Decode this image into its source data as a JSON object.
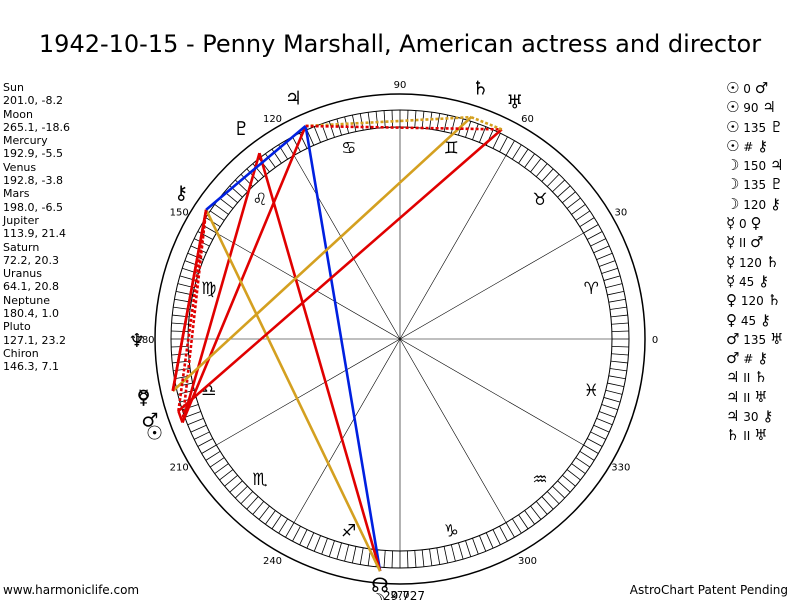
{
  "title": "1942-10-15 - Penny Marshall, American actress and director",
  "planets": [
    {
      "name": "Sun",
      "pos": "201.0, -8.2",
      "lon": 201.0,
      "glyph": "☉"
    },
    {
      "name": "Moon",
      "pos": "265.1, -18.6",
      "lon": 265.1,
      "glyph": "☽"
    },
    {
      "name": "Mercury",
      "pos": "192.9, -5.5",
      "lon": 192.9,
      "glyph": "☿"
    },
    {
      "name": "Venus",
      "pos": "192.8, -3.8",
      "lon": 192.8,
      "glyph": "♀"
    },
    {
      "name": "Mars",
      "pos": "198.0, -6.5",
      "lon": 198.0,
      "glyph": "♂"
    },
    {
      "name": "Jupiter",
      "pos": "113.9, 21.4",
      "lon": 113.9,
      "glyph": "♃"
    },
    {
      "name": "Saturn",
      "pos": "72.2, 20.3",
      "lon": 72.2,
      "glyph": "♄"
    },
    {
      "name": "Uranus",
      "pos": "64.1, 20.8",
      "lon": 64.1,
      "glyph": "♅"
    },
    {
      "name": "Neptune",
      "pos": "180.4, 1.0",
      "lon": 180.4,
      "glyph": "♆"
    },
    {
      "name": "Pluto",
      "pos": "127.1, 23.2",
      "lon": 127.1,
      "glyph": "♇"
    },
    {
      "name": "Chiron",
      "pos": "146.3, 7.1",
      "lon": 146.3,
      "glyph": "⚷"
    }
  ],
  "aspects": [
    {
      "p1": "☉",
      "val": "0",
      "p2": "♂"
    },
    {
      "p1": "☉",
      "val": "90",
      "p2": "♃"
    },
    {
      "p1": "☉",
      "val": "135",
      "p2": "♇"
    },
    {
      "p1": "☉",
      "val": "#",
      "p2": "⚷"
    },
    {
      "p1": "☽",
      "val": "150",
      "p2": "♃"
    },
    {
      "p1": "☽",
      "val": "135",
      "p2": "♇"
    },
    {
      "p1": "☽",
      "val": "120",
      "p2": "⚷"
    },
    {
      "p1": "☿",
      "val": "0",
      "p2": "♀"
    },
    {
      "p1": "☿",
      "val": "II",
      "p2": "♂"
    },
    {
      "p1": "☿",
      "val": "120",
      "p2": "♄"
    },
    {
      "p1": "☿",
      "val": "45",
      "p2": "⚷"
    },
    {
      "p1": "♀",
      "val": "120",
      "p2": "♄"
    },
    {
      "p1": "♀",
      "val": "45",
      "p2": "⚷"
    },
    {
      "p1": "♂",
      "val": "135",
      "p2": "♅"
    },
    {
      "p1": "♂",
      "val": "#",
      "p2": "⚷"
    },
    {
      "p1": "♃",
      "val": "II",
      "p2": "♄"
    },
    {
      "p1": "♃",
      "val": "II",
      "p2": "♅"
    },
    {
      "p1": "♃",
      "val": "30",
      "p2": "⚷"
    },
    {
      "p1": "♄",
      "val": "II",
      "p2": "♅"
    }
  ],
  "wheel": {
    "degree_labels": [
      "0",
      "30",
      "60",
      "90",
      "120",
      "150",
      "180",
      "210",
      "240",
      "270",
      "300",
      "330"
    ],
    "signs": [
      "♈",
      "♉",
      "♊",
      "♋",
      "♌",
      "♍",
      "♎",
      "♏",
      "♐",
      "♑",
      "♒",
      "♓"
    ],
    "node_label": "29,727",
    "node_glyph": "☊",
    "lines": [
      {
        "a": "Sun",
        "b": "Mars",
        "color": "#e00000",
        "dash": false
      },
      {
        "a": "Sun",
        "b": "Jupiter",
        "color": "#e00000",
        "dash": false
      },
      {
        "a": "Sun",
        "b": "Pluto",
        "color": "#e00000",
        "dash": false
      },
      {
        "a": "Sun",
        "b": "Chiron",
        "color": "#e00000",
        "dash": true
      },
      {
        "a": "Moon",
        "b": "Jupiter",
        "color": "#0020e0",
        "dash": false
      },
      {
        "a": "Moon",
        "b": "Pluto",
        "color": "#e00000",
        "dash": false
      },
      {
        "a": "Moon",
        "b": "Chiron",
        "color": "#d4a020",
        "dash": false
      },
      {
        "a": "Mercury",
        "b": "Saturn",
        "color": "#d4a020",
        "dash": false
      },
      {
        "a": "Mercury",
        "b": "Chiron",
        "color": "#e00000",
        "dash": false
      },
      {
        "a": "Venus",
        "b": "Chiron",
        "color": "#e00000",
        "dash": false
      },
      {
        "a": "Mars",
        "b": "Uranus",
        "color": "#e00000",
        "dash": false
      },
      {
        "a": "Mars",
        "b": "Chiron",
        "color": "#e00000",
        "dash": true
      },
      {
        "a": "Jupiter",
        "b": "Saturn",
        "color": "#d4a020",
        "dash": true
      },
      {
        "a": "Jupiter",
        "b": "Uranus",
        "color": "#e00000",
        "dash": true
      },
      {
        "a": "Jupiter",
        "b": "Chiron",
        "color": "#0020e0",
        "dash": false
      },
      {
        "a": "Saturn",
        "b": "Uranus",
        "color": "#d4a020",
        "dash": true
      }
    ]
  },
  "footer": {
    "left": "www.harmoniclife.com",
    "right": "AstroChart Patent Pending"
  }
}
